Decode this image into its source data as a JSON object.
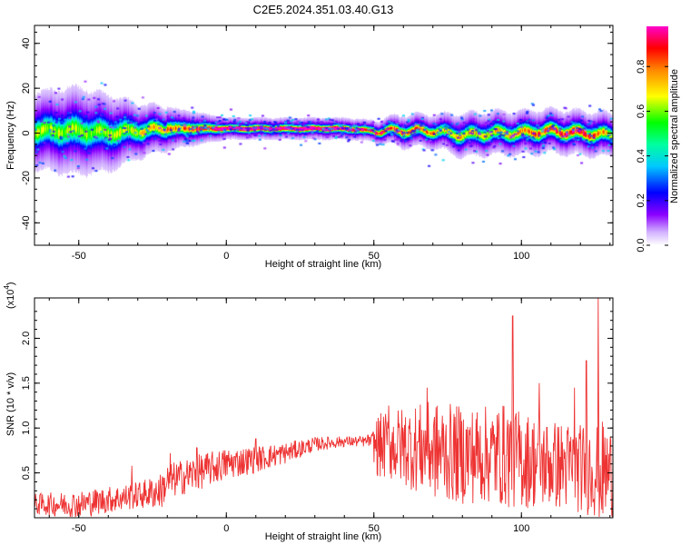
{
  "title": "C2E5.2024.351.03.40.G13",
  "colors": {
    "snr_line": "#ee3333",
    "background": "#ffffff",
    "axes": "#000000"
  },
  "chart_data": [
    {
      "type": "heatmap",
      "xlabel": "Height of straight line (km)",
      "ylabel": "Frequency (Hz)",
      "xlim": [
        -65,
        131
      ],
      "ylim": [
        -50,
        48
      ],
      "xticks": [
        -50,
        0,
        50,
        100
      ],
      "yticks": [
        -40,
        -20,
        0,
        20,
        40
      ],
      "grid": false,
      "colorbar": {
        "label": "Normalized spectral amplitude",
        "range": [
          0.0,
          0.98
        ],
        "ticks": [
          0.0,
          0.2,
          0.4,
          0.6,
          0.8
        ],
        "tick_labels": [
          "0.0",
          "0.2",
          "0.4",
          "0.6",
          "0.8"
        ],
        "colormap": "rainbow (white-violet-blue-cyan-green-yellow-orange-red-magenta)"
      },
      "ridge_center_hz": {
        "x": [
          -65,
          -50,
          -40,
          -30,
          -20,
          -10,
          0,
          10,
          20,
          30,
          40,
          50,
          60,
          70,
          80,
          90,
          100,
          110,
          120,
          131
        ],
        "y": [
          1,
          1,
          0,
          1,
          2,
          2,
          2,
          2,
          2,
          2,
          2,
          1,
          1,
          1,
          -1,
          0,
          0,
          1,
          0,
          -1
        ]
      },
      "ridge_halfwidth_hz": {
        "x": [
          -65,
          -50,
          -40,
          -30,
          -20,
          -10,
          0,
          10,
          20,
          30,
          40,
          50,
          60,
          70,
          80,
          90,
          100,
          110,
          120,
          131
        ],
        "y": [
          7,
          8,
          7,
          5,
          4,
          3,
          2,
          2,
          2,
          2,
          2,
          2,
          3,
          3,
          4,
          4,
          4,
          4,
          4,
          4
        ]
      },
      "peak_amplitude": {
        "x": [
          -65,
          -50,
          -40,
          -30,
          -20,
          -10,
          0,
          10,
          20,
          30,
          40,
          50,
          60,
          70,
          80,
          90,
          100,
          110,
          120,
          131
        ],
        "y": [
          0.45,
          0.45,
          0.45,
          0.5,
          0.6,
          0.7,
          0.95,
          0.95,
          0.95,
          0.95,
          0.95,
          0.8,
          0.7,
          0.6,
          0.55,
          0.55,
          0.6,
          0.7,
          0.75,
          0.5
        ]
      }
    },
    {
      "type": "line",
      "xlabel": "Height of straight line (km)",
      "ylabel": "SNR (10 * v/v)",
      "y_multiplier": "(x10",
      "y_multiplier_exp": "4",
      "xlim": [
        -65,
        131
      ],
      "ylim": [
        0,
        2.45
      ],
      "xticks": [
        -50,
        0,
        50,
        100
      ],
      "yticks": [
        0.5,
        1.0,
        1.5,
        2.0
      ],
      "ytick_labels": [
        "0.5",
        "1.0",
        "1.5",
        "2.0"
      ],
      "grid": false,
      "series": [
        {
          "color": "#ee3333",
          "envelope_x": [
            -65,
            -50,
            -40,
            -30,
            -22,
            -20,
            -10,
            0,
            10,
            20,
            30,
            40,
            49,
            51,
            60,
            70,
            80,
            90,
            96,
            100,
            110,
            120,
            125,
            127,
            131
          ],
          "envelope_mean": [
            0.15,
            0.15,
            0.2,
            0.25,
            0.3,
            0.4,
            0.5,
            0.6,
            0.65,
            0.72,
            0.82,
            0.85,
            0.85,
            0.8,
            0.8,
            0.75,
            0.7,
            0.7,
            0.7,
            0.65,
            0.6,
            0.55,
            0.55,
            0.5,
            0.5
          ],
          "envelope_spread": [
            0.12,
            0.15,
            0.15,
            0.15,
            0.2,
            0.2,
            0.2,
            0.18,
            0.15,
            0.12,
            0.08,
            0.06,
            0.06,
            0.35,
            0.45,
            0.55,
            0.55,
            0.55,
            0.6,
            0.55,
            0.5,
            0.5,
            0.55,
            0.6,
            0.5
          ],
          "peaks": {
            "x": [
              -32,
              -19,
              -10,
              10,
              48,
              55,
              68,
              97,
              106,
              118,
              122,
              126
            ],
            "y": [
              0.58,
              0.72,
              0.78,
              0.88,
              0.92,
              1.25,
              1.45,
              2.25,
              1.5,
              1.45,
              1.75,
              2.45
            ]
          }
        }
      ]
    }
  ]
}
